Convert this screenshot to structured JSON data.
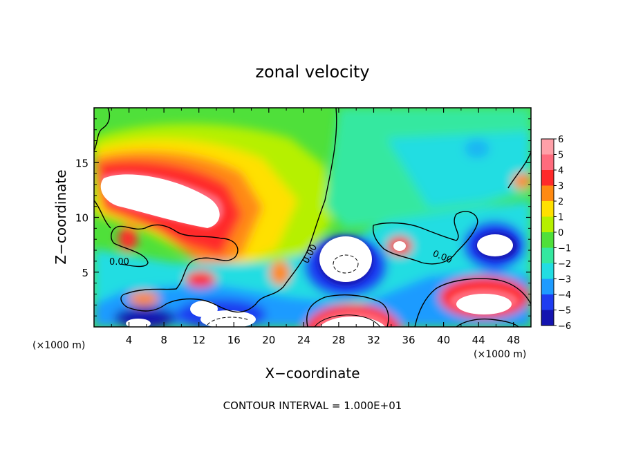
{
  "chart_data": {
    "type": "heatmap",
    "title": "zonal velocity",
    "xlabel": "X−coordinate",
    "ylabel": "Z−coordinate",
    "x_unit_left": "(×1000 m)",
    "x_unit_right": "(×1000 m)",
    "xlim": [
      0,
      50
    ],
    "ylim": [
      0,
      20
    ],
    "x_ticks": [
      "4",
      "8",
      "12",
      "16",
      "20",
      "24",
      "28",
      "32",
      "36",
      "40",
      "44",
      "48"
    ],
    "y_ticks": [
      "5",
      "10",
      "15"
    ],
    "colorbar_ticks": [
      "6",
      "5",
      "4",
      "3",
      "2",
      "1",
      "0",
      "−1",
      "−2",
      "−3",
      "−4",
      "−5",
      "−6"
    ],
    "colorbar_range": [
      -6,
      6
    ],
    "contour_labels": [
      "0.00",
      "0.00",
      "0.00"
    ],
    "footer": "CONTOUR INTERVAL = 1.000E+01",
    "colors": {
      "6": "#ffa0a8",
      "5": "#ff6b7d",
      "4": "#ff2a2a",
      "3": "#ff8a12",
      "2": "#ffe000",
      "1": "#b6f000",
      "0": "#4fe03a",
      "-1": "#34e8a0",
      "-2": "#22dde2",
      "-3": "#1e9bff",
      "-4": "#1e3cf0",
      "-5": "#1414b0",
      "-6": "#7a10c8"
    }
  }
}
